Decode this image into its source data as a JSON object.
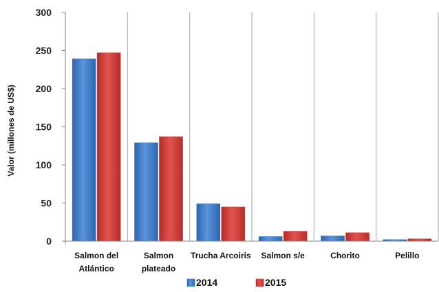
{
  "chart_data": {
    "type": "bar",
    "categories": [
      [
        "Salmon del",
        "Atlántico"
      ],
      [
        "Salmon",
        "plateado"
      ],
      [
        "Trucha Arcoiris"
      ],
      [
        "Salmon s/e"
      ],
      [
        "Chorito"
      ],
      [
        "Pelillo"
      ]
    ],
    "series": [
      {
        "name": "2014",
        "color": "#3d78c4",
        "values": [
          239,
          129,
          49,
          6,
          7,
          2
        ]
      },
      {
        "name": "2015",
        "color": "#cf3a36",
        "values": [
          247,
          137,
          45,
          13,
          11,
          3
        ]
      }
    ],
    "ylabel": "Valor (millones de US$)",
    "ylim": [
      0,
      300
    ],
    "yticks": [
      0,
      50,
      100,
      150,
      200,
      250,
      300
    ],
    "grid": "vertical separators between categories",
    "legend_position": "bottom"
  }
}
